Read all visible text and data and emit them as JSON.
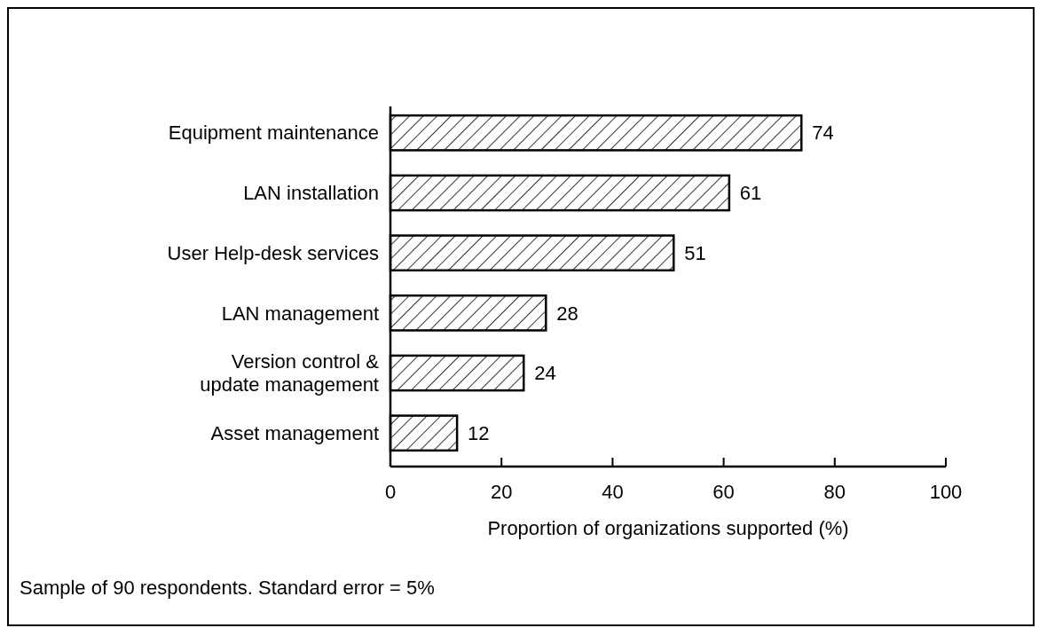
{
  "chart_data": {
    "type": "bar",
    "orientation": "horizontal",
    "categories": [
      "Equipment maintenance",
      "LAN installation",
      "User Help-desk services",
      "LAN management",
      "Version control &\nupdate management",
      "Asset management"
    ],
    "values": [
      74,
      61,
      51,
      28,
      24,
      12
    ],
    "color": "#000000",
    "xlim": [
      0,
      100
    ],
    "xticks": [
      0,
      20,
      40,
      60,
      80,
      100
    ],
    "xlabel": "Proportion of organizations supported (%)",
    "data_labels": true,
    "grid": false,
    "annotations": [
      "Sample of 90 respondents. Standard error = 5%"
    ]
  }
}
